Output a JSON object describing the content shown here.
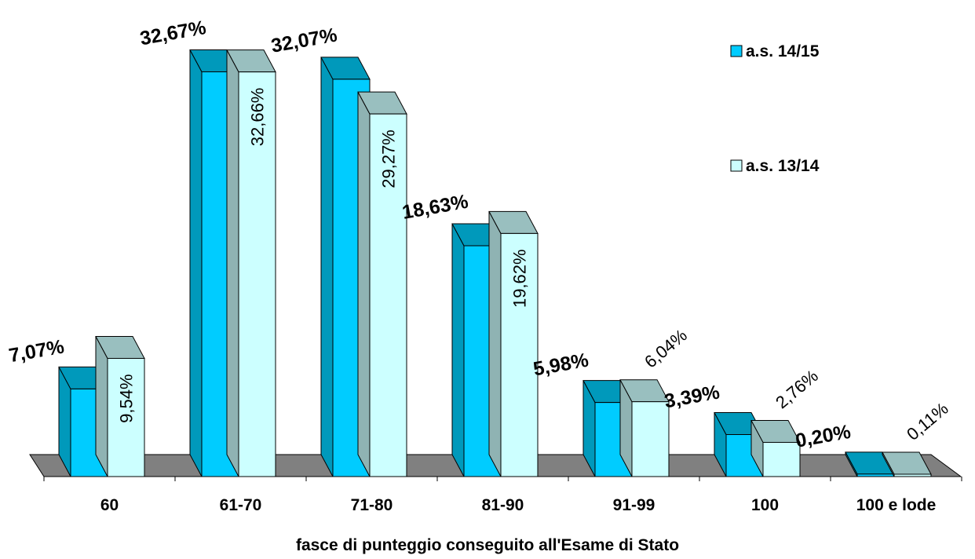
{
  "chart_data": {
    "type": "bar",
    "title": "",
    "xlabel": "fasce di punteggio conseguito all'Esame di Stato",
    "ylabel": "",
    "ylim": [
      0,
      35
    ],
    "grid": false,
    "legend_position": "top-right",
    "categories": [
      "60",
      "61-70",
      "71-80",
      "81-90",
      "91-99",
      "100",
      "100 e lode"
    ],
    "series": [
      {
        "name": "a.s. 14/15",
        "values": [
          7.07,
          32.67,
          32.07,
          18.63,
          5.98,
          3.39,
          0.2
        ],
        "labels": [
          "7,07%",
          "32,67%",
          "32,07%",
          "18,63%",
          "5,98%",
          "3,39%",
          "0,20%"
        ],
        "color": "#00ccff",
        "side_color": "#0099bb",
        "top_color": "#0099bb"
      },
      {
        "name": "a.s. 13/14",
        "values": [
          9.54,
          32.66,
          29.27,
          19.62,
          6.04,
          2.76,
          0.11
        ],
        "labels": [
          "9,54%",
          "32,66%",
          "29,27%",
          "19,62%",
          "6,04%",
          "2,76%",
          "0,11%"
        ],
        "color": "#ccffff",
        "side_color": "#8fb3b3",
        "top_color": "#99bfbf"
      }
    ],
    "floor_color": "#808080"
  }
}
